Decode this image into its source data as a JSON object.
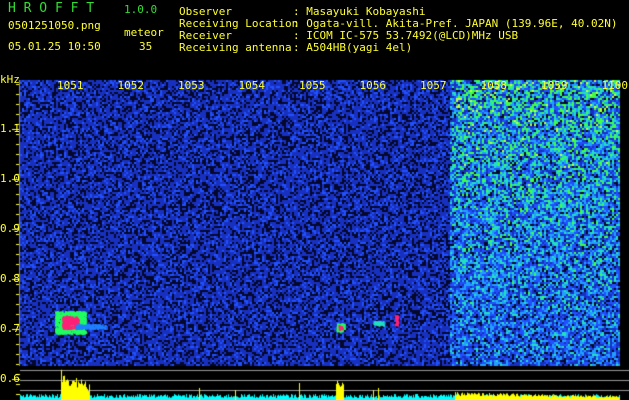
{
  "header": {
    "app_title": "H R O F F T",
    "version": "1.0.0",
    "filename": "0501251050.png",
    "datetime": "05.01.25 10:50",
    "meteor_label": "meteor",
    "meteor_count": "35",
    "observer_label": "Observer",
    "observer_value": ": Masayuki Kobayashi",
    "location_label": "Receiving Location",
    "location_value": ": Ogata-vill. Akita-Pref. JAPAN (139.96E, 40.02N)",
    "receiver_label": "Receiver",
    "receiver_value": ": ICOM IC-575 53.7492(@LCD)MHz USB",
    "antenna_label": "Receiving antenna",
    "antenna_value": ": A504HB(yagi 4el)"
  },
  "chart_data": {
    "type": "heatmap",
    "ylabel": "kHz",
    "x_tick_labels": [
      "1051",
      "1052",
      "1053",
      "1054",
      "1055",
      "1056",
      "1057",
      "1058",
      "1059",
      "1100"
    ],
    "y_tick_labels": [
      "1.1",
      "1.0",
      "0.9",
      "0.8",
      "0.7",
      "0.6"
    ],
    "ylim": [
      0.58,
      1.17
    ],
    "colors": {
      "background": "#000000",
      "noise": "#1a2aa0",
      "text": "#ffff33",
      "title": "#33dd33",
      "meteor": "#ff2277",
      "power_bar": "#ffff00",
      "power_floor": "#00ffff"
    }
  }
}
